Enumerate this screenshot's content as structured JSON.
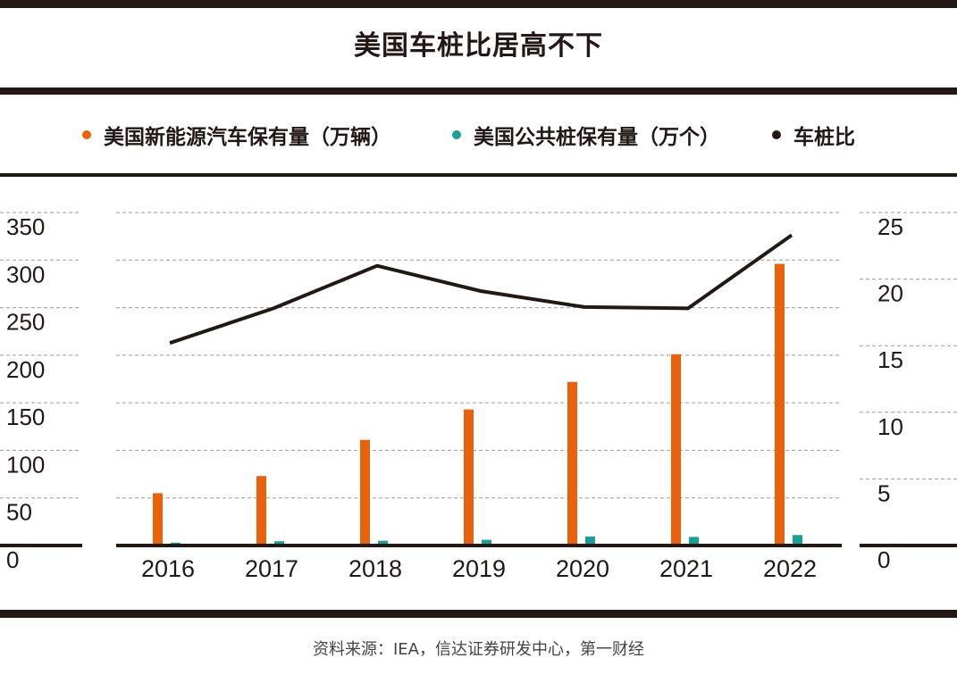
{
  "title": "美国车桩比居高不下",
  "legend": [
    {
      "label": "美国新能源汽车保有量（万辆）",
      "color": "#e8620d",
      "kind": "bar"
    },
    {
      "label": "美国公共桩保有量（万个）",
      "color": "#1a9e98",
      "kind": "bar"
    },
    {
      "label": "车桩比",
      "color": "#231815",
      "kind": "line"
    }
  ],
  "source": "资料来源：IEA，信达证券研发中心，第一财经",
  "chart_data": {
    "type": "bar",
    "title": "美国车桩比居高不下",
    "categories": [
      "2016",
      "2017",
      "2018",
      "2019",
      "2020",
      "2021",
      "2022"
    ],
    "series": [
      {
        "name": "美国新能源汽车保有量（万辆）",
        "type": "bar",
        "axis": "left",
        "color": "#e8620d",
        "values": [
          55,
          73,
          111,
          143,
          172,
          201,
          296
        ]
      },
      {
        "name": "美国公共桩保有量（万个）",
        "type": "bar",
        "axis": "left",
        "color": "#1a9e98",
        "values": [
          3,
          4.5,
          5,
          6,
          9.5,
          9,
          11
        ]
      },
      {
        "name": "车桩比",
        "type": "line",
        "axis": "right",
        "color": "#231815",
        "values": [
          15.2,
          17.8,
          21.0,
          19.1,
          17.9,
          17.8,
          23.3
        ]
      }
    ],
    "yleft": {
      "min": 0,
      "max": 350,
      "ticks": [
        "0",
        "50",
        "100",
        "150",
        "200",
        "250",
        "300",
        "350"
      ]
    },
    "yright": {
      "min": 0,
      "max": 25,
      "ticks": [
        "0",
        "5",
        "10",
        "15",
        "20",
        "25"
      ]
    },
    "grid": true,
    "legend_position": "top"
  }
}
